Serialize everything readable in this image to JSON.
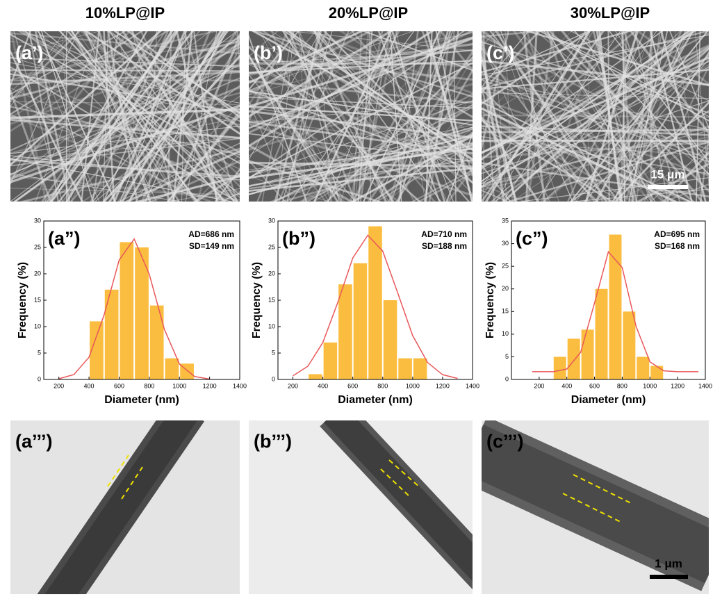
{
  "columns": [
    "10%LP@IP",
    "20%LP@IP",
    "30%LP@IP"
  ],
  "sem": {
    "labels": [
      "(a’)",
      "(b’)",
      "(c’)"
    ],
    "scale_bar": "15 μm"
  },
  "tem": {
    "labels": [
      "(a’’’)",
      "(b’’’)",
      "(c’’’)"
    ],
    "scale_bar": "1 μm"
  },
  "chart_data": [
    {
      "type": "histogram",
      "title": "(a”)",
      "annotations": [
        "AD=686 nm",
        "SD=149 nm"
      ],
      "xlabel": "Diameter (nm)",
      "ylabel": "Frequency (%)",
      "color": "#fbbd3f",
      "bins": [
        400,
        500,
        600,
        700,
        800,
        900,
        1000,
        1100
      ],
      "values": [
        11,
        17,
        26,
        25,
        14,
        4,
        3
      ],
      "fit": {
        "color": "#e8575a",
        "x": [
          200,
          300,
          400,
          500,
          600,
          700,
          800,
          900,
          1000,
          1100,
          1200
        ],
        "values": [
          0.13,
          0.93,
          4.2,
          12.2,
          22.6,
          26.6,
          19.9,
          9.5,
          2.9,
          0.56,
          0.07
        ]
      },
      "xlim": [
        100,
        1400
      ],
      "xticks": [
        200,
        400,
        600,
        800,
        1000,
        1200,
        1400
      ],
      "ylim": [
        0,
        30
      ],
      "yticks": [
        0,
        5,
        10,
        15,
        20,
        25,
        30
      ]
    },
    {
      "type": "histogram",
      "title": "(b”)",
      "annotations": [
        "AD=710 nm",
        "SD=188 nm"
      ],
      "xlabel": "Diameter (nm)",
      "ylabel": "Frequency (%)",
      "color": "#fbbd3f",
      "bins": [
        300,
        400,
        500,
        600,
        700,
        800,
        900,
        1000,
        1100
      ],
      "values": [
        1,
        7,
        18,
        22,
        29,
        15,
        4,
        4
      ],
      "fit": {
        "color": "#e8575a",
        "x": [
          200,
          300,
          400,
          500,
          600,
          700,
          800,
          900,
          1000,
          1100,
          1200,
          1300
        ],
        "values": [
          0.69,
          2.5,
          7.0,
          14.6,
          23.0,
          27.3,
          24.3,
          16.4,
          8.3,
          3.2,
          0.9,
          0.2
        ]
      },
      "xlim": [
        100,
        1400
      ],
      "xticks": [
        200,
        400,
        600,
        800,
        1000,
        1200,
        1400
      ],
      "ylim": [
        0,
        30
      ],
      "yticks": [
        0,
        5,
        10,
        15,
        20,
        25,
        30
      ]
    },
    {
      "type": "histogram",
      "title": "(c”)",
      "annotations": [
        "AD=695 nm",
        "SD=168 nm"
      ],
      "xlabel": "Diameter (nm)",
      "ylabel": "Frequency (%)",
      "color": "#fbbd3f",
      "bins": [
        300,
        400,
        500,
        600,
        700,
        800,
        900,
        1000,
        1100
      ],
      "values": [
        5,
        9,
        11,
        20,
        32,
        15,
        5,
        3
      ],
      "fit": {
        "color": "#e8575a",
        "x": [
          150,
          200,
          300,
          400,
          500,
          600,
          700,
          800,
          900,
          1000,
          1100,
          1200,
          1300,
          1350
        ],
        "values": [
          1.7,
          1.7,
          1.7,
          2.3,
          6.0,
          16.9,
          28.2,
          24.7,
          11.7,
          3.9,
          1.9,
          1.7,
          1.7,
          1.7
        ]
      },
      "xlim": [
        0,
        1400
      ],
      "xticks": [
        200,
        400,
        600,
        800,
        1000,
        1200,
        1400
      ],
      "ylim": [
        0,
        35
      ],
      "yticks": [
        0,
        5,
        10,
        15,
        20,
        25,
        30,
        35
      ]
    }
  ]
}
